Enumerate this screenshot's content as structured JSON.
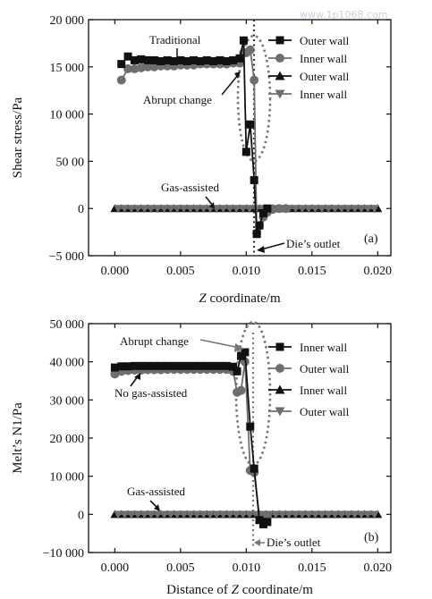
{
  "watermark": "www.1p1068.com",
  "chart_data": [
    {
      "type": "line",
      "panel_label": "(a)",
      "xlabel_italic": "Z",
      "xlabel_rest": " coordinate/m",
      "ylabel": "Shear stress/Pa",
      "xlim": [
        -0.002,
        0.021
      ],
      "ylim": [
        -5000,
        20000
      ],
      "x_ticks": [
        0.0,
        0.005,
        0.01,
        0.015,
        0.02
      ],
      "x_tick_labels": [
        "0.000",
        "0.005",
        "0.010",
        "0.015",
        "0.020"
      ],
      "y_ticks": [
        -5000,
        0,
        5000,
        10000,
        15000,
        20000
      ],
      "y_tick_labels": [
        "−5 000",
        "0",
        "50 00",
        "10 000",
        "15 000",
        "20 000"
      ],
      "annotations": {
        "traditional": "Traditional",
        "abrupt": "Abrupt change",
        "gas": "Gas-assisted",
        "outlet": "Die’s outlet"
      },
      "series": [
        {
          "name": "Outer wall",
          "marker": "square",
          "color": "#111111",
          "x": [
            0.0005,
            0.001,
            0.0015,
            0.002,
            0.0025,
            0.003,
            0.0035,
            0.004,
            0.0045,
            0.005,
            0.0055,
            0.006,
            0.0065,
            0.007,
            0.0075,
            0.008,
            0.0085,
            0.009,
            0.0095,
            0.0098,
            0.01,
            0.0103,
            0.0106,
            0.0108,
            0.011,
            0.0113,
            0.0116
          ],
          "y": [
            15300,
            16100,
            15700,
            15800,
            15700,
            15700,
            15600,
            15700,
            15600,
            15700,
            15600,
            15700,
            15600,
            15700,
            15600,
            15700,
            15600,
            15700,
            15900,
            17800,
            6000,
            8900,
            3000,
            -2700,
            -1800,
            -500,
            0
          ]
        },
        {
          "name": "Inner wall",
          "marker": "circle",
          "color": "#6e6e6e",
          "x": [
            0.0005,
            0.001,
            0.0015,
            0.002,
            0.0025,
            0.003,
            0.0035,
            0.004,
            0.0045,
            0.005,
            0.0055,
            0.006,
            0.0065,
            0.007,
            0.0075,
            0.008,
            0.0085,
            0.009,
            0.0095,
            0.0098,
            0.01,
            0.0103,
            0.0106,
            0.0108,
            0.011,
            0.0113,
            0.0116,
            0.012,
            0.0125,
            0.013
          ],
          "y": [
            13600,
            14800,
            14800,
            14900,
            15000,
            15000,
            15100,
            15100,
            15100,
            15200,
            15200,
            15200,
            15300,
            15300,
            15300,
            15300,
            15300,
            15400,
            15400,
            16500,
            16500,
            16800,
            13600,
            -2600,
            -1800,
            -900,
            -400,
            -100,
            0,
            0
          ]
        },
        {
          "name": "Outer wall",
          "marker": "triangle-up",
          "color": "#111111",
          "x": [
            0.0,
            0.0005,
            0.001,
            0.0015,
            0.002,
            0.0025,
            0.003,
            0.0035,
            0.004,
            0.0045,
            0.005,
            0.0055,
            0.006,
            0.0065,
            0.007,
            0.0075,
            0.008,
            0.0085,
            0.009,
            0.0095,
            0.01,
            0.0105,
            0.011,
            0.0115,
            0.012,
            0.0125,
            0.013,
            0.0135,
            0.014,
            0.0145,
            0.015,
            0.0155,
            0.016,
            0.0165,
            0.017,
            0.0175,
            0.018,
            0.0185,
            0.019,
            0.0195,
            0.02
          ],
          "y": [
            0,
            0,
            0,
            0,
            0,
            0,
            0,
            0,
            0,
            0,
            0,
            0,
            0,
            0,
            0,
            0,
            0,
            0,
            0,
            0,
            0,
            0,
            0,
            0,
            0,
            0,
            0,
            0,
            0,
            0,
            0,
            0,
            0,
            0,
            0,
            0,
            0,
            0,
            0,
            0,
            0
          ]
        },
        {
          "name": "Inner wall",
          "marker": "triangle-down",
          "color": "#6e6e6e",
          "x": [
            0.00025,
            0.00075,
            0.00125,
            0.00175,
            0.00225,
            0.00275,
            0.00325,
            0.00375,
            0.00425,
            0.00475,
            0.00525,
            0.00575,
            0.00625,
            0.00675,
            0.00725,
            0.00775,
            0.00825,
            0.00875,
            0.00925,
            0.00975,
            0.01025,
            0.01075,
            0.01125,
            0.01175,
            0.01225,
            0.01275,
            0.01325,
            0.01375,
            0.01425,
            0.01475,
            0.01525,
            0.01575,
            0.01625,
            0.01675,
            0.01725,
            0.01775,
            0.01825,
            0.01875,
            0.01925,
            0.01975
          ],
          "y": [
            0,
            0,
            0,
            0,
            0,
            0,
            0,
            0,
            0,
            0,
            0,
            0,
            0,
            0,
            0,
            0,
            0,
            0,
            0,
            0,
            0,
            0,
            0,
            0,
            0,
            0,
            0,
            0,
            0,
            0,
            0,
            0,
            0,
            0,
            0,
            0,
            0,
            0,
            0,
            0
          ]
        }
      ]
    },
    {
      "type": "line",
      "panel_label": "(b)",
      "xlabel_prefix": "Distance of ",
      "xlabel_italic": "Z",
      "xlabel_rest": " coordinate/m",
      "ylabel": "Melt’s N1/Pa",
      "xlim": [
        -0.002,
        0.021
      ],
      "ylim": [
        -10000,
        50000
      ],
      "x_ticks": [
        0.0,
        0.005,
        0.01,
        0.015,
        0.02
      ],
      "x_tick_labels": [
        "0.000",
        "0.005",
        "0.010",
        "0.015",
        "0.020"
      ],
      "y_ticks": [
        -10000,
        0,
        10000,
        20000,
        30000,
        40000,
        50000
      ],
      "y_tick_labels": [
        "−10 000",
        "0",
        "10 000",
        "20 000",
        "30 000",
        "40 000",
        "50 000"
      ],
      "annotations": {
        "abrupt": "Abrupt change",
        "no_gas": "No gas-assisted",
        "gas": "Gas-assisted",
        "outlet": "Die’s outlet"
      },
      "series": [
        {
          "name": "Inner wall",
          "marker": "square",
          "color": "#111111",
          "x": [
            0.0,
            0.0005,
            0.001,
            0.0015,
            0.002,
            0.0025,
            0.003,
            0.0035,
            0.004,
            0.0045,
            0.005,
            0.0055,
            0.006,
            0.0065,
            0.007,
            0.0075,
            0.008,
            0.0085,
            0.009,
            0.0093,
            0.0096,
            0.0099,
            0.0103,
            0.0106,
            0.011,
            0.0113,
            0.0116
          ],
          "y": [
            38500,
            38800,
            38800,
            38900,
            38900,
            38900,
            38900,
            38900,
            38900,
            38900,
            38900,
            38900,
            38900,
            38900,
            38900,
            38900,
            38900,
            38900,
            38700,
            37500,
            41500,
            42500,
            23000,
            12000,
            -1500,
            -2600,
            -2000
          ]
        },
        {
          "name": "Outer wall",
          "marker": "circle",
          "color": "#6e6e6e",
          "x": [
            0.0,
            0.0005,
            0.001,
            0.0015,
            0.002,
            0.0025,
            0.003,
            0.0035,
            0.004,
            0.0045,
            0.005,
            0.0055,
            0.006,
            0.0065,
            0.007,
            0.0075,
            0.008,
            0.0085,
            0.009,
            0.0093,
            0.0096,
            0.0099,
            0.0103,
            0.0106,
            0.011,
            0.0113,
            0.0116
          ],
          "y": [
            36800,
            37500,
            37700,
            37800,
            37800,
            37900,
            37900,
            37900,
            38000,
            38000,
            38000,
            38000,
            38000,
            38000,
            38000,
            38000,
            38000,
            38000,
            37500,
            32000,
            32500,
            40000,
            11500,
            11000,
            -600,
            -1000,
            -500
          ]
        },
        {
          "name": "Inner wall",
          "marker": "triangle-up",
          "color": "#111111",
          "x": [
            0.0,
            0.0005,
            0.001,
            0.0015,
            0.002,
            0.0025,
            0.003,
            0.0035,
            0.004,
            0.0045,
            0.005,
            0.0055,
            0.006,
            0.0065,
            0.007,
            0.0075,
            0.008,
            0.0085,
            0.009,
            0.0095,
            0.01,
            0.0105,
            0.011,
            0.0115,
            0.012,
            0.0125,
            0.013,
            0.0135,
            0.014,
            0.0145,
            0.015,
            0.0155,
            0.016,
            0.0165,
            0.017,
            0.0175,
            0.018,
            0.0185,
            0.019,
            0.0195,
            0.02
          ],
          "y": [
            0,
            0,
            0,
            0,
            0,
            0,
            0,
            0,
            0,
            0,
            0,
            0,
            0,
            0,
            0,
            0,
            0,
            0,
            0,
            0,
            0,
            0,
            0,
            0,
            0,
            0,
            0,
            0,
            0,
            0,
            0,
            0,
            0,
            0,
            0,
            0,
            0,
            0,
            0,
            0,
            0
          ]
        },
        {
          "name": "Outer wall",
          "marker": "triangle-down",
          "color": "#6e6e6e",
          "x": [
            0.00025,
            0.00075,
            0.00125,
            0.00175,
            0.00225,
            0.00275,
            0.00325,
            0.00375,
            0.00425,
            0.00475,
            0.00525,
            0.00575,
            0.00625,
            0.00675,
            0.00725,
            0.00775,
            0.00825,
            0.00875,
            0.00925,
            0.00975,
            0.01025,
            0.01075,
            0.01125,
            0.01175,
            0.01225,
            0.01275,
            0.01325,
            0.01375,
            0.01425,
            0.01475,
            0.01525,
            0.01575,
            0.01625,
            0.01675,
            0.01725,
            0.01775,
            0.01825,
            0.01875,
            0.01925,
            0.01975
          ],
          "y": [
            0,
            0,
            0,
            0,
            0,
            0,
            0,
            0,
            0,
            0,
            0,
            0,
            0,
            0,
            0,
            0,
            0,
            0,
            0,
            0,
            0,
            0,
            0,
            0,
            0,
            0,
            0,
            0,
            0,
            0,
            0,
            0,
            0,
            0,
            0,
            0,
            0,
            0,
            0,
            0
          ]
        }
      ]
    }
  ]
}
